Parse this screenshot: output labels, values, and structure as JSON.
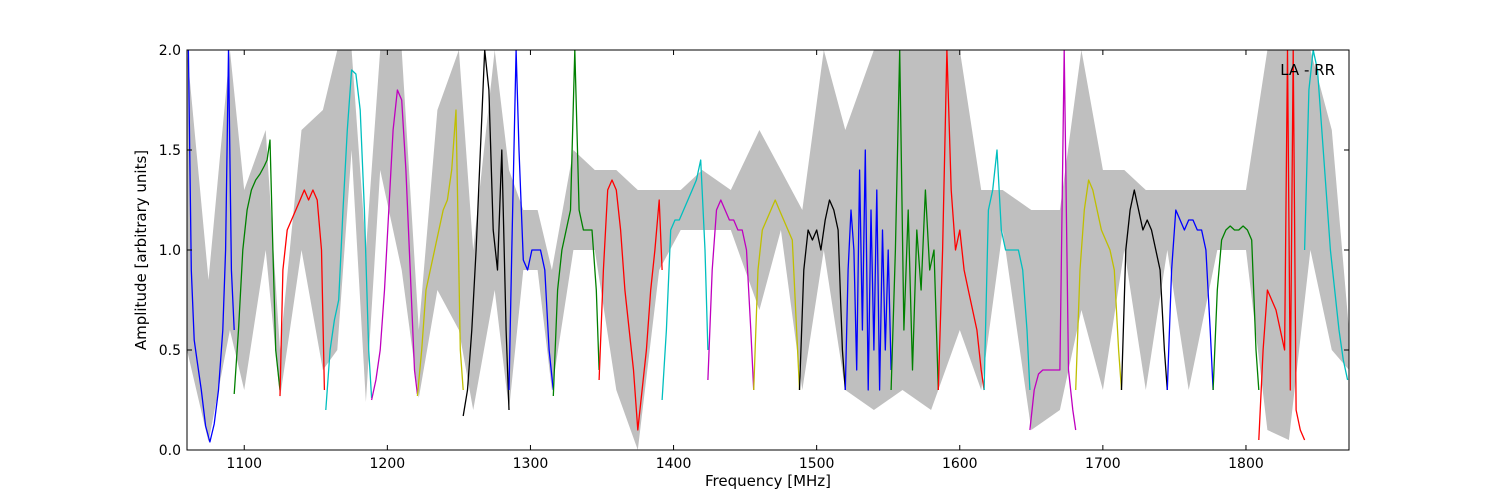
{
  "chart_data": {
    "type": "line",
    "title": "",
    "annotation": "LA - RR",
    "xlabel": "Frequency [MHz]",
    "ylabel": "Amplitude [arbitrary units]",
    "xlim": [
      1060,
      1872
    ],
    "ylim": [
      0.0,
      2.0
    ],
    "grid": false,
    "x_ticks": [
      1100,
      1200,
      1300,
      1400,
      1500,
      1600,
      1700,
      1800
    ],
    "y_ticks": [
      0.0,
      0.5,
      1.0,
      1.5,
      2.0
    ],
    "x_tick_labels": [
      "1100",
      "1200",
      "1300",
      "1400",
      "1500",
      "1600",
      "1700",
      "1800"
    ],
    "y_tick_labels": [
      "0.0",
      "0.5",
      "1.0",
      "1.5",
      "2.0"
    ],
    "background_envelope": {
      "color": "#bfbfbf",
      "x": [
        1060,
        1075,
        1090,
        1100,
        1115,
        1125,
        1140,
        1155,
        1165,
        1175,
        1185,
        1195,
        1210,
        1222,
        1235,
        1250,
        1260,
        1275,
        1285,
        1295,
        1305,
        1315,
        1330,
        1345,
        1360,
        1375,
        1390,
        1405,
        1420,
        1440,
        1460,
        1475,
        1490,
        1505,
        1520,
        1540,
        1560,
        1580,
        1600,
        1615,
        1630,
        1650,
        1670,
        1685,
        1700,
        1715,
        1730,
        1745,
        1760,
        1780,
        1800,
        1815,
        1830,
        1845,
        1860,
        1872
      ],
      "upper": [
        2.0,
        0.85,
        2.0,
        1.3,
        1.6,
        0.5,
        1.6,
        1.7,
        2.0,
        2.0,
        1.0,
        2.0,
        2.0,
        0.6,
        1.7,
        2.0,
        1.0,
        2.0,
        1.4,
        1.2,
        1.2,
        0.9,
        1.5,
        1.4,
        1.4,
        1.3,
        1.3,
        1.3,
        1.4,
        1.3,
        1.6,
        1.4,
        1.2,
        2.0,
        1.6,
        2.0,
        2.0,
        2.0,
        2.0,
        1.3,
        1.3,
        1.2,
        1.2,
        2.0,
        1.4,
        1.4,
        1.3,
        1.3,
        1.3,
        1.3,
        1.3,
        2.0,
        2.0,
        2.0,
        1.6,
        0.6
      ],
      "lower": [
        0.5,
        0.04,
        0.6,
        0.3,
        1.0,
        0.26,
        1.0,
        0.4,
        0.5,
        1.5,
        0.24,
        1.4,
        0.9,
        0.26,
        0.8,
        0.6,
        0.2,
        0.8,
        0.2,
        0.9,
        0.9,
        0.3,
        1.0,
        1.0,
        0.3,
        0.0,
        0.9,
        1.1,
        1.1,
        1.1,
        0.7,
        1.1,
        0.3,
        1.0,
        0.3,
        0.2,
        0.3,
        0.2,
        0.6,
        0.3,
        1.1,
        0.1,
        0.2,
        0.7,
        0.3,
        1.0,
        0.3,
        1.0,
        0.3,
        1.0,
        1.0,
        0.1,
        0.05,
        1.0,
        0.5,
        0.4
      ]
    },
    "series": [
      {
        "color": "#0000ff",
        "x": [
          1061,
          1063,
          1065,
          1067,
          1070,
          1073,
          1076,
          1079,
          1082,
          1085,
          1087,
          1089,
          1091,
          1093
        ],
        "y": [
          2.0,
          0.9,
          0.55,
          0.45,
          0.3,
          0.12,
          0.04,
          0.13,
          0.3,
          0.6,
          1.0,
          2.0,
          0.9,
          0.6
        ]
      },
      {
        "color": "#008000",
        "x": [
          1093,
          1096,
          1099,
          1102,
          1105,
          1108,
          1111,
          1114,
          1116,
          1118,
          1120,
          1122,
          1125
        ],
        "y": [
          0.28,
          0.6,
          1.0,
          1.2,
          1.3,
          1.35,
          1.38,
          1.42,
          1.45,
          1.55,
          1.0,
          0.5,
          0.3
        ]
      },
      {
        "color": "#ff0000",
        "x": [
          1125,
          1127,
          1130,
          1133,
          1136,
          1139,
          1142,
          1145,
          1148,
          1151,
          1154,
          1156
        ],
        "y": [
          0.27,
          0.9,
          1.1,
          1.15,
          1.2,
          1.25,
          1.3,
          1.25,
          1.3,
          1.25,
          1.0,
          0.3
        ]
      },
      {
        "color": "#00bfbf",
        "x": [
          1157,
          1160,
          1163,
          1166,
          1169,
          1172,
          1175,
          1178,
          1181,
          1184,
          1187,
          1189
        ],
        "y": [
          0.2,
          0.5,
          0.65,
          0.75,
          1.2,
          1.6,
          1.9,
          1.88,
          1.7,
          1.2,
          0.5,
          0.26
        ]
      },
      {
        "color": "#bf00bf",
        "x": [
          1189,
          1192,
          1195,
          1198,
          1201,
          1204,
          1207,
          1210,
          1213,
          1216,
          1219,
          1221
        ],
        "y": [
          0.25,
          0.35,
          0.5,
          0.8,
          1.2,
          1.6,
          1.8,
          1.75,
          1.4,
          0.9,
          0.4,
          0.28
        ]
      },
      {
        "color": "#bfbf00",
        "x": [
          1221,
          1224,
          1227,
          1230,
          1233,
          1236,
          1239,
          1242,
          1245,
          1248,
          1251,
          1253
        ],
        "y": [
          0.27,
          0.5,
          0.8,
          0.9,
          1.0,
          1.1,
          1.2,
          1.25,
          1.4,
          1.7,
          0.5,
          0.3
        ]
      },
      {
        "color": "#000000",
        "x": [
          1253,
          1256,
          1259,
          1262,
          1265,
          1268,
          1271,
          1274,
          1277,
          1280,
          1283,
          1285
        ],
        "y": [
          0.17,
          0.3,
          0.6,
          1.0,
          1.5,
          2.0,
          1.8,
          1.1,
          0.9,
          1.5,
          0.6,
          0.2
        ]
      },
      {
        "color": "#0000ff",
        "x": [
          1285,
          1287,
          1290,
          1292,
          1295,
          1298,
          1301,
          1304,
          1307,
          1310,
          1313,
          1316
        ],
        "y": [
          0.3,
          1.0,
          2.0,
          1.5,
          0.95,
          0.9,
          1.0,
          1.0,
          1.0,
          0.9,
          0.5,
          0.3
        ]
      },
      {
        "color": "#008000",
        "x": [
          1316,
          1319,
          1322,
          1325,
          1328,
          1331,
          1334,
          1337,
          1340,
          1343,
          1346,
          1348
        ],
        "y": [
          0.27,
          0.8,
          1.0,
          1.1,
          1.2,
          2.0,
          1.2,
          1.1,
          1.1,
          1.1,
          0.8,
          0.4
        ]
      },
      {
        "color": "#ff0000",
        "x": [
          1348,
          1351,
          1354,
          1357,
          1360,
          1363,
          1366,
          1369,
          1372,
          1375,
          1378,
          1381,
          1384,
          1387,
          1390,
          1392
        ],
        "y": [
          0.35,
          0.9,
          1.3,
          1.35,
          1.3,
          1.1,
          0.8,
          0.6,
          0.4,
          0.1,
          0.3,
          0.5,
          0.8,
          1.0,
          1.25,
          0.9
        ]
      },
      {
        "color": "#00bfbf",
        "x": [
          1392,
          1395,
          1398,
          1401,
          1404,
          1407,
          1410,
          1413,
          1416,
          1419,
          1422,
          1424
        ],
        "y": [
          0.25,
          0.6,
          1.1,
          1.15,
          1.15,
          1.2,
          1.25,
          1.3,
          1.35,
          1.45,
          1.0,
          0.5
        ]
      },
      {
        "color": "#bf00bf",
        "x": [
          1424,
          1427,
          1430,
          1433,
          1436,
          1439,
          1442,
          1445,
          1448,
          1451,
          1454,
          1456
        ],
        "y": [
          0.35,
          0.9,
          1.2,
          1.25,
          1.2,
          1.15,
          1.15,
          1.1,
          1.1,
          1.0,
          0.6,
          0.3
        ]
      },
      {
        "color": "#bfbf00",
        "x": [
          1456,
          1459,
          1462,
          1465,
          1468,
          1471,
          1474,
          1477,
          1480,
          1483,
          1486,
          1488
        ],
        "y": [
          0.3,
          0.9,
          1.1,
          1.15,
          1.2,
          1.25,
          1.2,
          1.15,
          1.1,
          1.05,
          0.6,
          0.3
        ]
      },
      {
        "color": "#000000",
        "x": [
          1488,
          1491,
          1494,
          1497,
          1500,
          1503,
          1506,
          1509,
          1512,
          1515,
          1518,
          1520
        ],
        "y": [
          0.3,
          0.9,
          1.1,
          1.05,
          1.1,
          1.0,
          1.15,
          1.25,
          1.2,
          1.1,
          0.5,
          0.3
        ]
      },
      {
        "color": "#0000ff",
        "x": [
          1520,
          1522,
          1524,
          1526,
          1528,
          1530,
          1532,
          1534,
          1536,
          1538,
          1540,
          1542,
          1544,
          1546,
          1548,
          1550,
          1552
        ],
        "y": [
          0.3,
          0.9,
          1.2,
          1.0,
          0.4,
          1.4,
          0.6,
          1.5,
          0.3,
          1.2,
          0.5,
          1.3,
          0.3,
          1.1,
          0.5,
          1.0,
          0.4
        ]
      },
      {
        "color": "#008000",
        "x": [
          1552,
          1555,
          1558,
          1561,
          1564,
          1567,
          1570,
          1573,
          1576,
          1579,
          1582,
          1585
        ],
        "y": [
          0.3,
          1.0,
          2.0,
          0.6,
          1.2,
          0.4,
          1.1,
          0.8,
          1.3,
          0.9,
          1.0,
          0.3
        ]
      },
      {
        "color": "#ff0000",
        "x": [
          1585,
          1588,
          1591,
          1594,
          1597,
          1600,
          1603,
          1606,
          1609,
          1612,
          1615,
          1617
        ],
        "y": [
          0.3,
          1.0,
          2.0,
          1.3,
          1.0,
          1.1,
          0.9,
          0.8,
          0.7,
          0.6,
          0.4,
          0.3
        ]
      },
      {
        "color": "#00bfbf",
        "x": [
          1617,
          1620,
          1623,
          1626,
          1629,
          1632,
          1635,
          1638,
          1641,
          1644,
          1647,
          1649
        ],
        "y": [
          0.3,
          1.2,
          1.3,
          1.5,
          1.1,
          1.0,
          1.0,
          1.0,
          1.0,
          0.9,
          0.6,
          0.3
        ]
      },
      {
        "color": "#bf00bf",
        "x": [
          1649,
          1652,
          1655,
          1658,
          1661,
          1664,
          1667,
          1670,
          1673,
          1676,
          1679,
          1681
        ],
        "y": [
          0.1,
          0.3,
          0.38,
          0.4,
          0.4,
          0.4,
          0.4,
          0.4,
          2.0,
          0.4,
          0.2,
          0.1
        ]
      },
      {
        "color": "#bfbf00",
        "x": [
          1681,
          1684,
          1687,
          1690,
          1693,
          1696,
          1699,
          1702,
          1705,
          1708,
          1711,
          1713
        ],
        "y": [
          0.3,
          0.9,
          1.2,
          1.35,
          1.3,
          1.2,
          1.1,
          1.05,
          1.0,
          0.9,
          0.5,
          0.3
        ]
      },
      {
        "color": "#000000",
        "x": [
          1713,
          1716,
          1719,
          1722,
          1725,
          1728,
          1731,
          1734,
          1737,
          1740,
          1743,
          1745
        ],
        "y": [
          0.3,
          1.0,
          1.2,
          1.3,
          1.2,
          1.1,
          1.15,
          1.1,
          1.0,
          0.9,
          0.5,
          0.3
        ]
      },
      {
        "color": "#0000ff",
        "x": [
          1745,
          1748,
          1751,
          1754,
          1757,
          1760,
          1763,
          1766,
          1769,
          1772,
          1775,
          1777
        ],
        "y": [
          0.3,
          0.9,
          1.2,
          1.15,
          1.1,
          1.15,
          1.15,
          1.1,
          1.1,
          1.0,
          0.6,
          0.3
        ]
      },
      {
        "color": "#008000",
        "x": [
          1777,
          1780,
          1783,
          1786,
          1789,
          1792,
          1795,
          1798,
          1801,
          1804,
          1807,
          1809
        ],
        "y": [
          0.3,
          0.8,
          1.05,
          1.1,
          1.12,
          1.1,
          1.1,
          1.12,
          1.1,
          1.05,
          0.5,
          0.3
        ]
      },
      {
        "color": "#ff0000",
        "x": [
          1809,
          1812,
          1815,
          1818,
          1821,
          1824,
          1827,
          1829,
          1831,
          1833,
          1835,
          1838,
          1841
        ],
        "y": [
          0.05,
          0.5,
          0.8,
          0.75,
          0.7,
          0.6,
          0.5,
          2.0,
          0.3,
          2.0,
          0.2,
          0.1,
          0.05
        ]
      },
      {
        "color": "#00bfbf",
        "x": [
          1841,
          1844,
          1847,
          1850,
          1853,
          1856,
          1859,
          1862,
          1865,
          1868,
          1871
        ],
        "y": [
          1.0,
          1.8,
          2.0,
          1.9,
          1.6,
          1.3,
          1.0,
          0.8,
          0.6,
          0.45,
          0.35
        ]
      }
    ]
  }
}
